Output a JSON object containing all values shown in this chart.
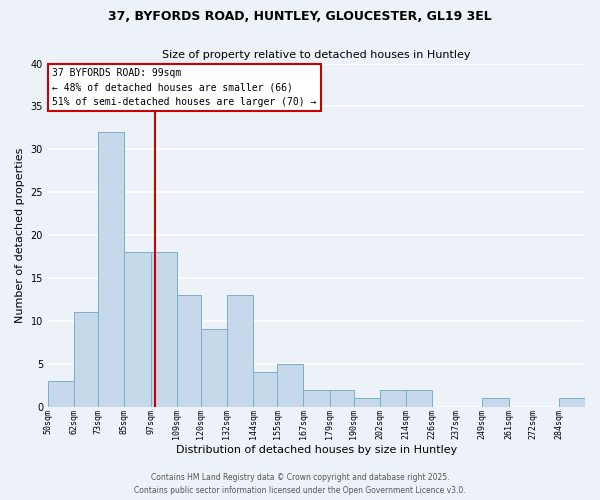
{
  "title_line1": "37, BYFORDS ROAD, HUNTLEY, GLOUCESTER, GL19 3EL",
  "title_line2": "Size of property relative to detached houses in Huntley",
  "xlabel": "Distribution of detached houses by size in Huntley",
  "ylabel": "Number of detached properties",
  "bar_edges": [
    50,
    62,
    73,
    85,
    97,
    109,
    120,
    132,
    144,
    155,
    167,
    179,
    190,
    202,
    214,
    226,
    237,
    249,
    261,
    272,
    284,
    296
  ],
  "bar_heights": [
    3,
    11,
    32,
    18,
    18,
    13,
    9,
    13,
    4,
    5,
    2,
    2,
    1,
    2,
    2,
    0,
    0,
    1,
    0,
    0,
    1
  ],
  "bar_color": "#c5d9ea",
  "bar_edgecolor": "#7aaec8",
  "red_line_x": 99,
  "annotation_title": "37 BYFORDS ROAD: 99sqm",
  "annotation_line2": "← 48% of detached houses are smaller (66)",
  "annotation_line3": "51% of semi-detached houses are larger (70) →",
  "annotation_box_color": "#ffffff",
  "annotation_box_edgecolor": "#cc0000",
  "ylim": [
    0,
    40
  ],
  "yticks": [
    0,
    5,
    10,
    15,
    20,
    25,
    30,
    35,
    40
  ],
  "background_color": "#edf2f9",
  "grid_color": "#ffffff",
  "footer_line1": "Contains HM Land Registry data © Crown copyright and database right 2025.",
  "footer_line2": "Contains public sector information licensed under the Open Government Licence v3.0.",
  "tick_labels": [
    "50sqm",
    "62sqm",
    "73sqm",
    "85sqm",
    "97sqm",
    "109sqm",
    "120sqm",
    "132sqm",
    "144sqm",
    "155sqm",
    "167sqm",
    "179sqm",
    "190sqm",
    "202sqm",
    "214sqm",
    "226sqm",
    "237sqm",
    "249sqm",
    "261sqm",
    "272sqm",
    "284sqm"
  ]
}
